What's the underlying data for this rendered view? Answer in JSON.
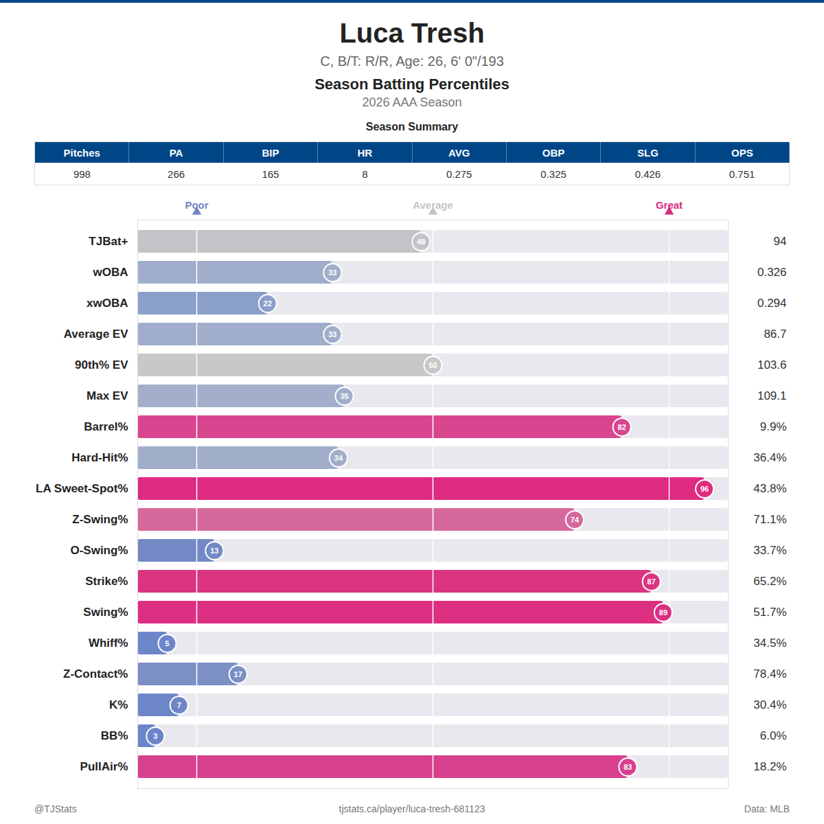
{
  "chart_data": {
    "type": "bar",
    "orientation": "horizontal",
    "title": "Luca Tresh",
    "subtitle": "C, B/T: R/R, Age: 26, 6' 0\"/193",
    "heading": "Season Batting Percentiles",
    "season": "2026 AAA Season",
    "summary": {
      "title": "Season Summary",
      "columns": [
        "Pitches",
        "PA",
        "BIP",
        "HR",
        "AVG",
        "OBP",
        "SLG",
        "OPS"
      ],
      "values": [
        "998",
        "266",
        "165",
        "8",
        "0.275",
        "0.325",
        "0.426",
        "0.751"
      ]
    },
    "categories": [
      "TJBat+",
      "wOBA",
      "xwOBA",
      "Average EV",
      "90th% EV",
      "Max EV",
      "Barrel%",
      "Hard-Hit%",
      "LA Sweet-Spot%",
      "Z-Swing%",
      "O-Swing%",
      "Strike%",
      "Swing%",
      "Whiff%",
      "Z-Contact%",
      "K%",
      "BB%",
      "PullAir%"
    ],
    "values": [
      48,
      33,
      22,
      33,
      50,
      35,
      82,
      34,
      96,
      74,
      13,
      87,
      89,
      5,
      17,
      7,
      3,
      83
    ],
    "colors": [
      "#c4c4c8",
      "#a0aecb",
      "#8b9fcb",
      "#a0aecb",
      "#c8c8c8",
      "#a3afca",
      "#d9468f",
      "#a1aeca",
      "#de2a80",
      "#d6689c",
      "#7389c6",
      "#db3482",
      "#dc2f82",
      "#6c86c8",
      "#7c90c5",
      "#6d86c8",
      "#6a85c9",
      "#d8408d"
    ],
    "stats": [
      "94",
      "0.326",
      "0.294",
      "86.7",
      "103.6",
      "109.1",
      "9.9%",
      "36.4%",
      "43.8%",
      "71.1%",
      "33.7%",
      "65.2%",
      "51.7%",
      "34.5%",
      "78.4%",
      "30.4%",
      "6.0%",
      "18.2%"
    ],
    "xlim": [
      0,
      100
    ],
    "xticks": [
      {
        "value": 10,
        "label": "Poor"
      },
      {
        "value": 50,
        "label": "Average"
      },
      {
        "value": 90,
        "label": "Great"
      }
    ],
    "data_labels": true,
    "footer": {
      "left": "@TJStats",
      "center": "tjstats.ca/player/luca-tresh-681123",
      "right": "Data: MLB"
    }
  }
}
